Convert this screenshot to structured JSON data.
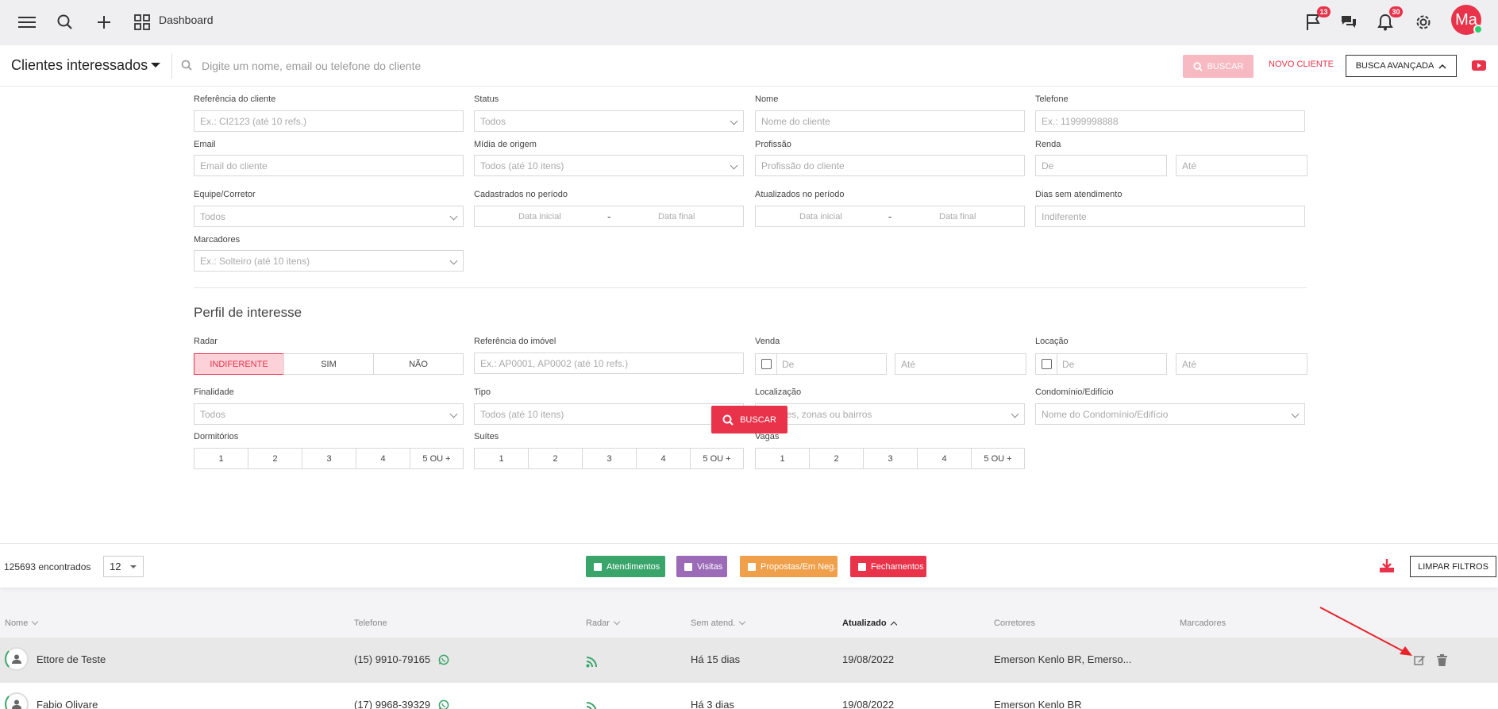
{
  "topbar": {
    "dashboard_label": "Dashboard",
    "flag_badge": "13",
    "bell_badge": "30",
    "avatar_initials": "Ma",
    "icons": [
      "menu-icon",
      "search-icon",
      "plus-icon",
      "dashboard-grid-icon",
      "flag-icon",
      "chat-icon",
      "bell-icon",
      "gear-icon"
    ]
  },
  "header": {
    "title": "Clientes interessados",
    "search_placeholder": "Digite um nome, email ou telefone do cliente",
    "buscar_label": "BUSCAR",
    "novo_cliente_label": "NOVO CLIENTE",
    "busca_avancada_label": "BUSCA AVANÇADA"
  },
  "filters": {
    "referencia_label": "Referência do cliente",
    "referencia_placeholder": "Ex.: CI2123 (até 10 refs.)",
    "status_label": "Status",
    "status_value": "Todos",
    "nome_label": "Nome",
    "nome_placeholder": "Nome do cliente",
    "telefone_label": "Telefone",
    "telefone_placeholder": "Ex.: 11999998888",
    "email_label": "Email",
    "email_placeholder": "Email do cliente",
    "midia_label": "Mídia de origem",
    "midia_value": "Todos (até 10 itens)",
    "profissao_label": "Profissão",
    "profissao_placeholder": "Profissão do cliente",
    "renda_label": "Renda",
    "renda_de": "De",
    "renda_ate": "Até",
    "equipe_label": "Equipe/Corretor",
    "equipe_value": "Todos",
    "cadastrados_label": "Cadastrados no período",
    "data_inicial": "Data inicial",
    "data_final": "Data final",
    "dash": "-",
    "atualizados_label": "Atualizados no período",
    "dias_label": "Dias sem atendimento",
    "dias_placeholder": "Indiferente",
    "marcadores_label": "Marcadores",
    "marcadores_placeholder": "Ex.: Solteiro (até 10 itens)"
  },
  "perfil": {
    "section_title": "Perfil de interesse",
    "radar_label": "Radar",
    "radar_options": [
      "INDIFERENTE",
      "SIM",
      "NÃO"
    ],
    "ref_imovel_label": "Referência do imóvel",
    "ref_imovel_placeholder": "Ex.: AP0001, AP0002 (até 10 refs.)",
    "venda_label": "Venda",
    "locacao_label": "Locação",
    "de": "De",
    "ate": "Até",
    "finalidade_label": "Finalidade",
    "finalidade_value": "Todos",
    "tipo_label": "Tipo",
    "tipo_value": "Todos (até 10 itens)",
    "localizacao_label": "Localização",
    "localizacao_placeholder": "Cidades, zonas ou bairros",
    "condominio_label": "Condomínio/Edifício",
    "condominio_placeholder": "Nome do Condomínio/Edifício",
    "dormitorios_label": "Dormitórios",
    "suites_label": "Suítes",
    "vagas_label": "Vagas",
    "count_options": [
      "1",
      "2",
      "3",
      "4",
      "5 OU +"
    ],
    "buscar_label": "BUSCAR"
  },
  "results": {
    "count_text": "125693 encontrados",
    "per_page": "12",
    "legend": [
      {
        "label": "Atendimentos",
        "color": "#3aa56b"
      },
      {
        "label": "Visitas",
        "color": "#9b6bb8"
      },
      {
        "label": "Propostas/Em Neg.",
        "color": "#f0a04b"
      },
      {
        "label": "Fechamentos",
        "color": "#e8334a"
      }
    ],
    "limpar_label": "LIMPAR FILTROS"
  },
  "table": {
    "columns": [
      "Nome",
      "Telefone",
      "Radar",
      "Sem atend.",
      "Atualizado",
      "Corretores",
      "Marcadores"
    ],
    "rows": [
      {
        "nome": "Ettore de Teste",
        "telefone": "(15) 9910-79165",
        "sem_atend": "Há 15 dias",
        "atualizado": "19/08/2022",
        "corretores": "Emerson Kenlo BR, Emerso..."
      },
      {
        "nome": "Fabio Olivare",
        "telefone": "(17) 9968-39329",
        "sem_atend": "Há 3 dias",
        "atualizado": "19/08/2022",
        "corretores": "Emerson Kenlo BR"
      }
    ]
  }
}
